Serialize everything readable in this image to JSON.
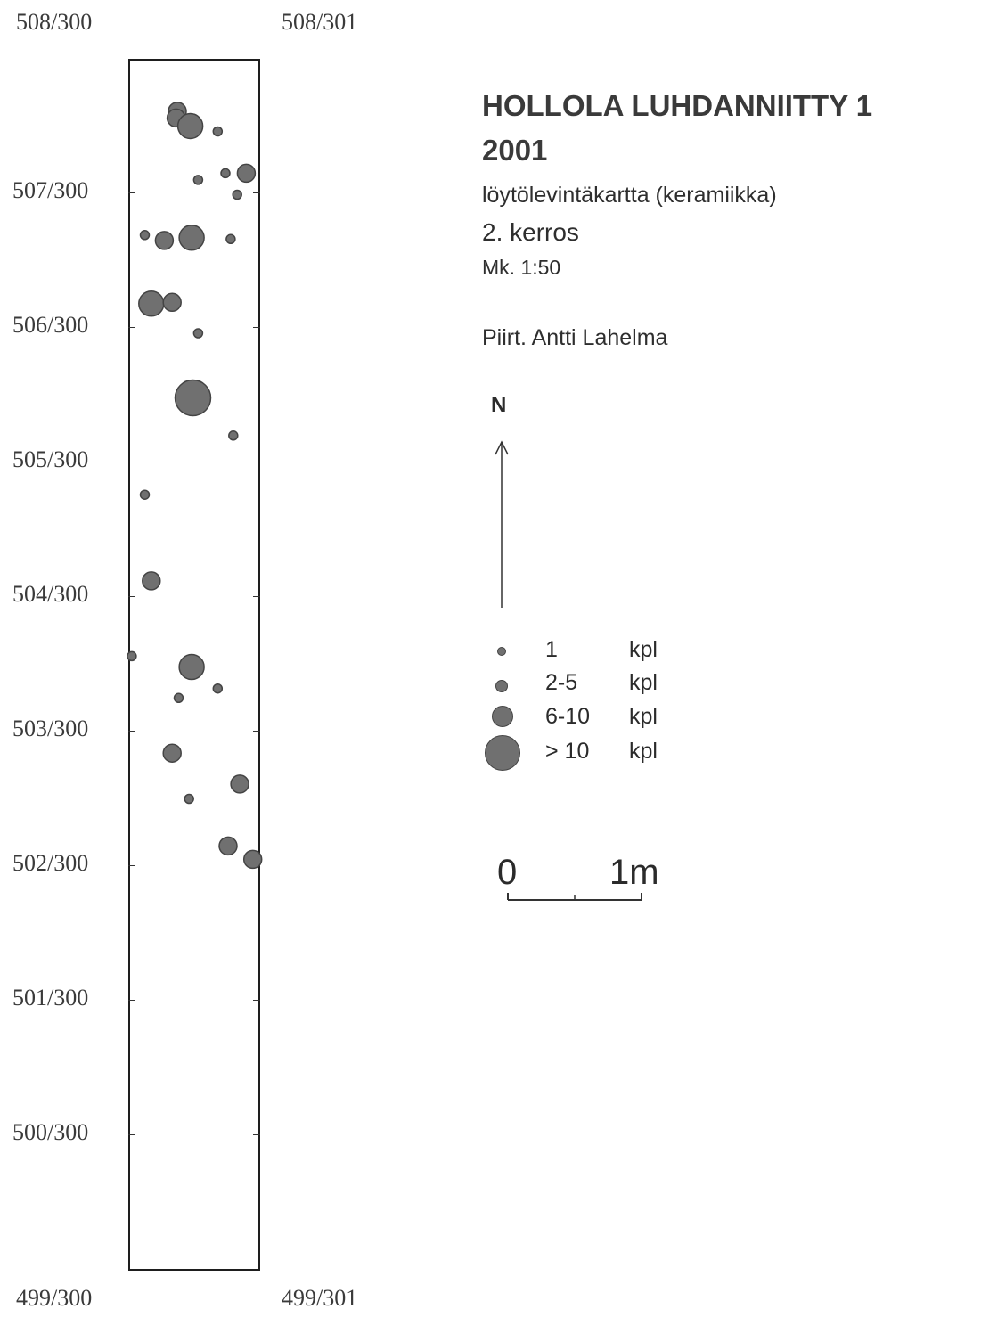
{
  "grid": {
    "top_left": "508/300",
    "top_right": "508/301",
    "bottom_left": "499/300",
    "bottom_right": "499/301",
    "row_labels": [
      "507/300",
      "506/300",
      "505/300",
      "504/300",
      "503/300",
      "502/300",
      "501/300",
      "500/300"
    ]
  },
  "header": {
    "site": "HOLLOLA LUHDANNIITTY 1",
    "year": "2001",
    "map_type": "löytölevintäkartta (keramiikka)",
    "layer": "2. kerros",
    "scale": "Mk. 1:50",
    "drawn_by": "Piirt. Antti Lahelma"
  },
  "north_arrow": {
    "label": "N"
  },
  "legend": [
    {
      "class": "1",
      "unit": "kpl"
    },
    {
      "class": "2-5",
      "unit": "kpl"
    },
    {
      "class": "6-10",
      "unit": "kpl"
    },
    {
      "class": "> 10",
      "unit": "kpl"
    }
  ],
  "scale_bar": {
    "start": "0",
    "end": "1m"
  },
  "colors": {
    "find_fill": "#707070",
    "find_stroke": "#444444",
    "frame": "#1e1e1e"
  },
  "finds": [
    {
      "x": 300.37,
      "y": 507.61,
      "size": 2
    },
    {
      "x": 300.36,
      "y": 507.56,
      "size": 2
    },
    {
      "x": 300.47,
      "y": 507.5,
      "size": 3
    },
    {
      "x": 300.68,
      "y": 507.46,
      "size": 1
    },
    {
      "x": 300.53,
      "y": 507.1,
      "size": 1
    },
    {
      "x": 300.74,
      "y": 507.15,
      "size": 1
    },
    {
      "x": 300.9,
      "y": 507.15,
      "size": 2
    },
    {
      "x": 300.83,
      "y": 506.99,
      "size": 1
    },
    {
      "x": 300.12,
      "y": 506.69,
      "size": 1
    },
    {
      "x": 300.27,
      "y": 506.65,
      "size": 2
    },
    {
      "x": 300.48,
      "y": 506.67,
      "size": 3
    },
    {
      "x": 300.78,
      "y": 506.66,
      "size": 1
    },
    {
      "x": 300.17,
      "y": 506.18,
      "size": 3
    },
    {
      "x": 300.33,
      "y": 506.19,
      "size": 2
    },
    {
      "x": 300.53,
      "y": 505.96,
      "size": 1
    },
    {
      "x": 300.49,
      "y": 505.48,
      "size": 4
    },
    {
      "x": 300.8,
      "y": 505.2,
      "size": 1
    },
    {
      "x": 300.12,
      "y": 504.76,
      "size": 1
    },
    {
      "x": 300.17,
      "y": 504.12,
      "size": 2
    },
    {
      "x": 300.02,
      "y": 503.56,
      "size": 1
    },
    {
      "x": 300.48,
      "y": 503.48,
      "size": 3
    },
    {
      "x": 300.38,
      "y": 503.25,
      "size": 1
    },
    {
      "x": 300.68,
      "y": 503.32,
      "size": 1
    },
    {
      "x": 300.33,
      "y": 502.84,
      "size": 2
    },
    {
      "x": 300.46,
      "y": 502.5,
      "size": 1
    },
    {
      "x": 300.85,
      "y": 502.61,
      "size": 2
    },
    {
      "x": 300.76,
      "y": 502.15,
      "size": 2
    },
    {
      "x": 300.95,
      "y": 502.05,
      "size": 2
    }
  ]
}
